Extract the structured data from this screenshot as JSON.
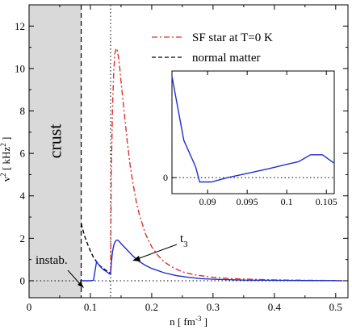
{
  "chart_data": {
    "type": "line",
    "xlim": [
      0,
      0.52
    ],
    "ylim": [
      -0.8,
      13
    ],
    "x_ticks": [
      0,
      0.1,
      0.2,
      0.3,
      0.4,
      0.5
    ],
    "x_tick_labels": [
      "0",
      "0.1",
      "0.2",
      "0.3",
      "0.4",
      "0.5"
    ],
    "y_ticks": [
      0,
      2,
      4,
      6,
      8,
      10,
      12
    ],
    "y_tick_labels": [
      "0",
      "2",
      "4",
      "6",
      "8",
      "10",
      "12"
    ],
    "xlabel_parts": [
      "n [ fm",
      "-3",
      " ]"
    ],
    "ylabel_parts": [
      "v",
      "2",
      " [ kHz",
      "2",
      " ]"
    ],
    "grid": false,
    "legend_position": "top-right",
    "legend": [
      {
        "label": "SF star at T=0 K",
        "color": "#e03030",
        "dash": "dash-dot"
      },
      {
        "label": "normal matter",
        "color": "#000000",
        "dash": "dashed"
      }
    ],
    "crust_region": {
      "x_end": 0.085,
      "label": "crust",
      "fill": "#d9d9d9"
    },
    "vertical_lines": [
      {
        "x": 0.085,
        "style": "dashed"
      },
      {
        "x": 0.133,
        "style": "dotted"
      }
    ],
    "horizontal_reference": {
      "y": 0,
      "style": "dotted"
    },
    "annotations": [
      {
        "label": "instab.",
        "arrow_to": [
          0.1,
          0.05
        ]
      },
      {
        "label": "t",
        "subscript": "3",
        "arrow_to": [
          0.16,
          1.4
        ]
      }
    ],
    "series": [
      {
        "name": "SF star at T=0 K",
        "color": "#e03030",
        "dash": "dash-dot",
        "x": [
          0.133,
          0.134,
          0.136,
          0.138,
          0.14,
          0.142,
          0.144,
          0.146,
          0.148,
          0.15,
          0.155,
          0.16,
          0.165,
          0.17,
          0.175,
          0.18,
          0.19,
          0.2,
          0.21,
          0.22,
          0.23,
          0.24,
          0.25,
          0.27,
          0.3,
          0.33,
          0.36,
          0.4,
          0.45,
          0.5
        ],
        "y": [
          0.4,
          5.0,
          8.0,
          9.8,
          10.7,
          10.95,
          10.85,
          10.5,
          10.0,
          9.4,
          8.0,
          6.6,
          5.4,
          4.5,
          3.7,
          3.1,
          2.2,
          1.6,
          1.2,
          0.9,
          0.7,
          0.55,
          0.42,
          0.28,
          0.16,
          0.1,
          0.07,
          0.04,
          0.02,
          0.01
        ]
      },
      {
        "name": "normal matter",
        "color": "#000000",
        "dash": "dashed",
        "x": [
          0.085,
          0.09,
          0.095,
          0.1,
          0.105,
          0.11,
          0.115,
          0.12,
          0.125,
          0.13,
          0.133
        ],
        "y": [
          2.7,
          2.15,
          1.75,
          1.4,
          1.1,
          0.9,
          0.72,
          0.6,
          0.5,
          0.4,
          0.35
        ]
      },
      {
        "name": "t3",
        "color": "#1f2ed0",
        "dash": "solid",
        "x": [
          0.085,
          0.088,
          0.09,
          0.095,
          0.1,
          0.105,
          0.11,
          0.115,
          0.12,
          0.125,
          0.13,
          0.133,
          0.134,
          0.136,
          0.138,
          0.14,
          0.142,
          0.144,
          0.146,
          0.148,
          0.15,
          0.155,
          0.16,
          0.17,
          0.18,
          0.19,
          0.2,
          0.22,
          0.24,
          0.26,
          0.28,
          0.3,
          0.35,
          0.4,
          0.45,
          0.5,
          0.51
        ],
        "y": [
          0.02,
          0.0,
          0.0,
          0.0,
          0.0,
          0.02,
          0.9,
          0.7,
          0.55,
          0.45,
          0.35,
          0.3,
          0.8,
          1.35,
          1.65,
          1.82,
          1.9,
          1.92,
          1.88,
          1.82,
          1.75,
          1.6,
          1.45,
          1.15,
          0.9,
          0.72,
          0.58,
          0.38,
          0.24,
          0.16,
          0.1,
          0.07,
          0.03,
          0.02,
          0.01,
          0.005,
          0.0
        ]
      }
    ],
    "inset": {
      "xlim": [
        0.0855,
        0.106
      ],
      "ylim": [
        -0.03,
        0.2
      ],
      "x_ticks": [
        0.09,
        0.095,
        0.1,
        0.105
      ],
      "x_tick_labels": [
        "0.09",
        "0.095",
        "0.1",
        "0.105"
      ],
      "y_ticks": [
        0
      ],
      "y_tick_labels": [
        "0"
      ],
      "horizontal_reference": {
        "y": 0,
        "style": "dotted"
      },
      "series": {
        "color": "#1f2ed0",
        "x": [
          0.0855,
          0.087,
          0.0885,
          0.089,
          0.0905,
          0.0925,
          0.095,
          0.0975,
          0.1,
          0.1015,
          0.103,
          0.1045,
          0.106
        ],
        "y": [
          0.19,
          0.07,
          0.02,
          -0.008,
          -0.008,
          0.0,
          0.008,
          0.016,
          0.025,
          0.03,
          0.043,
          0.043,
          0.027
        ]
      }
    }
  }
}
